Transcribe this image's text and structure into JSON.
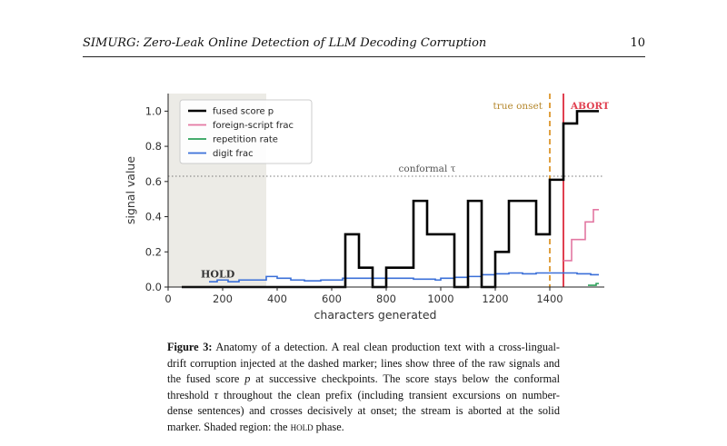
{
  "header": {
    "running_title": "SIMURG: Zero-Leak Online Detection of LLM Decoding Corruption",
    "page_number": "10"
  },
  "chart_data": {
    "type": "line",
    "xlabel": "characters generated",
    "ylabel": "signal value",
    "xlim": [
      0,
      1600
    ],
    "ylim": [
      0,
      1.1
    ],
    "xticks": [
      0,
      200,
      400,
      600,
      800,
      1000,
      1200,
      1400
    ],
    "yticks": [
      0.0,
      0.2,
      0.4,
      0.6,
      0.8,
      1.0
    ],
    "grid": false,
    "legend_position": "top-left",
    "colors": {
      "fused": "#000000",
      "foreign": "#e377a2",
      "repetition": "#2ca05a",
      "digit": "#3a6fd8",
      "onset": "#e0a040",
      "abort": "#e04050",
      "threshold": "#777777",
      "hold_region": "#ecebe6"
    },
    "hold_region": [
      0,
      360
    ],
    "hold_label": "HOLD",
    "threshold": {
      "value": 0.63,
      "label": "conformal τ"
    },
    "onset": {
      "x": 1400,
      "label": "true onset"
    },
    "abort": {
      "x": 1450,
      "label": "ABORT"
    },
    "series": [
      {
        "name": "fused score p",
        "step": true,
        "x": [
          50,
          650,
          700,
          750,
          800,
          900,
          950,
          1050,
          1100,
          1150,
          1200,
          1250,
          1350,
          1400,
          1450,
          1500,
          1580
        ],
        "y": [
          0,
          0.3,
          0.11,
          0,
          0.11,
          0.49,
          0.3,
          0,
          0.49,
          0,
          0.2,
          0.49,
          0.3,
          0.61,
          0.93,
          1.0,
          1.0
        ]
      },
      {
        "name": "foreign-script frac",
        "step": true,
        "x": [
          1450,
          1480,
          1530,
          1560,
          1580
        ],
        "y": [
          0.15,
          0.27,
          0.37,
          0.44,
          0.44
        ]
      },
      {
        "name": "repetition rate",
        "step": true,
        "x": [
          1540,
          1570,
          1580
        ],
        "y": [
          0.01,
          0.02,
          0.02
        ]
      },
      {
        "name": "digit frac",
        "step": true,
        "x": [
          150,
          180,
          220,
          260,
          290,
          360,
          400,
          450,
          500,
          560,
          640,
          700,
          760,
          900,
          980,
          1000,
          1050,
          1100,
          1150,
          1200,
          1250,
          1300,
          1350,
          1400,
          1450,
          1500,
          1550,
          1580
        ],
        "y": [
          0.03,
          0.04,
          0.03,
          0.04,
          0.04,
          0.06,
          0.05,
          0.04,
          0.035,
          0.04,
          0.05,
          0.05,
          0.05,
          0.045,
          0.04,
          0.05,
          0.055,
          0.06,
          0.07,
          0.075,
          0.08,
          0.075,
          0.08,
          0.08,
          0.08,
          0.075,
          0.07,
          0.07
        ]
      }
    ]
  },
  "caption": {
    "label": "Figure 3:",
    "p1": "Anatomy of a detection. A real clean production text with a cross-lingual-drift corruption injected at the dashed marker; lines show three of the raw signals and the fused score ",
    "p": "p",
    "p2": " at successive checkpoints. The score stays below the conformal threshold ",
    "tau": "τ",
    "p3": " throughout the clean prefix (including transient excursions on number-dense sentences) and crosses decisively at onset; the stream is aborted at the solid marker. Shaded region: the ",
    "hold": "hold",
    "p4": " phase."
  }
}
